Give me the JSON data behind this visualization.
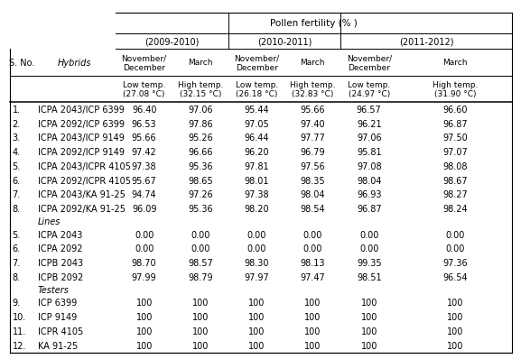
{
  "title": "Pollen fertility (% )",
  "year_headers": [
    "(2009-2010)",
    "(2010-2011)",
    "(2011-2012)"
  ],
  "month_headers": [
    "November/\nDecember",
    "March",
    "November/\nDecember",
    "March",
    "November/\nDecember",
    "March"
  ],
  "temp_headers": [
    "Low temp.\n(27.08 °C)",
    "High temp.\n(32.15 °C)",
    "Low temp.\n(26.18 °C)",
    "High temp.\n(32.83 °C)",
    "Low temp.\n(24.97 °C)",
    "High temp.\n(31.90 °C)"
  ],
  "hybrids_rows": [
    [
      "1.",
      "ICPA 2043/ICP 6399",
      "96.40",
      "97.06",
      "95.44",
      "95.66",
      "96.57",
      "96.60"
    ],
    [
      "2.",
      "ICPA 2092/ICP 6399",
      "96.53",
      "97.86",
      "97.05",
      "97.40",
      "96.21",
      "96.87"
    ],
    [
      "3.",
      "ICPA 2043/ICP 9149",
      "95.66",
      "95.26",
      "96.44",
      "97.77",
      "97.06",
      "97.50"
    ],
    [
      "4.",
      "ICPA 2092/ICP 9149",
      "97.42",
      "96.66",
      "96.20",
      "96.79",
      "95.81",
      "97.07"
    ],
    [
      "5.",
      "ICPA 2043/ICPR 4105",
      "97.38",
      "95.36",
      "97.81",
      "97.56",
      "97.08",
      "98.08"
    ],
    [
      "6.",
      "ICPA 2092/ICPR 4105",
      "95.67",
      "98.65",
      "98.01",
      "98.35",
      "98.04",
      "98.67"
    ],
    [
      "7.",
      "ICPA 2043/KA 91-25",
      "94.74",
      "97.26",
      "97.38",
      "98.04",
      "96.93",
      "98.27"
    ],
    [
      "8.",
      "ICPA 2092/KA 91-25",
      "96.09",
      "95.36",
      "98.20",
      "98.54",
      "96.87",
      "98.24"
    ]
  ],
  "lines_label": "Lines",
  "lines_rows": [
    [
      "5.",
      "ICPA 2043",
      "0.00",
      "0.00",
      "0.00",
      "0.00",
      "0.00",
      "0.00"
    ],
    [
      "6.",
      "ICPA 2092",
      "0.00",
      "0.00",
      "0.00",
      "0.00",
      "0.00",
      "0.00"
    ],
    [
      "7.",
      "ICPB 2043",
      "98.70",
      "98.57",
      "98.30",
      "98.13",
      "99.35",
      "97.36"
    ],
    [
      "8.",
      "ICPB 2092",
      "97.99",
      "98.79",
      "97.97",
      "97.47",
      "98.51",
      "96.54"
    ]
  ],
  "testers_label": "Testers",
  "testers_rows": [
    [
      "9.",
      "ICP 6399",
      "100",
      "100",
      "100",
      "100",
      "100",
      "100"
    ],
    [
      "10.",
      "ICP 9149",
      "100",
      "100",
      "100",
      "100",
      "100",
      "100"
    ],
    [
      "11.",
      "ICPR 4105",
      "100",
      "100",
      "100",
      "100",
      "100",
      "100"
    ],
    [
      "12.",
      "KA 91-25",
      "100",
      "100",
      "100",
      "100",
      "100",
      "100"
    ]
  ],
  "col_bounds": [
    0.0,
    0.048,
    0.21,
    0.325,
    0.435,
    0.548,
    0.658,
    0.772,
    1.0
  ],
  "rh_title": 0.068,
  "rh_year": 0.053,
  "rh_month": 0.092,
  "rh_temp": 0.088,
  "rh_data": 0.048,
  "rh_label": 0.038,
  "fs_title": 7.5,
  "fs_header": 7.0,
  "fs_temp": 6.5,
  "fs_data": 7.0
}
